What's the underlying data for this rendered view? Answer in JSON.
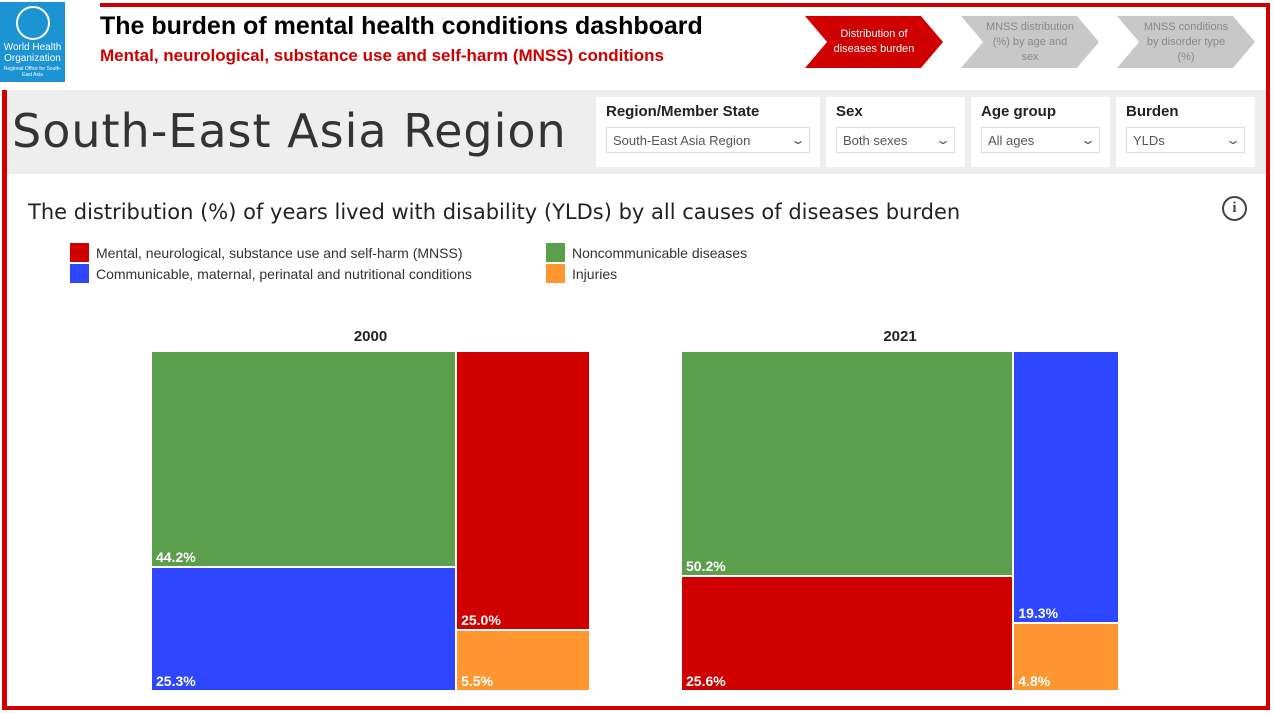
{
  "header": {
    "logo_text": "World Health Organization",
    "logo_subtext": "Regional Office for South-East Asia",
    "title": "The burden of mental health conditions dashboard",
    "subtitle": "Mental, neurological, substance use and self-harm (MNSS) conditions"
  },
  "nav": [
    {
      "label": "Distribution of diseases burden",
      "active": true
    },
    {
      "label": "MNSS distribution (%) by age and sex",
      "active": false
    },
    {
      "label": "MNSS conditions by disorder type (%)",
      "active": false
    }
  ],
  "region_title": "South-East Asia Region",
  "filters": [
    {
      "label": "Region/Member State",
      "value": "South-East Asia Region"
    },
    {
      "label": "Sex",
      "value": "Both sexes"
    },
    {
      "label": "Age group",
      "value": "All ages"
    },
    {
      "label": "Burden",
      "value": "YLDs"
    }
  ],
  "chart_title": "The distribution (%) of years lived with disability (YLDs) by all causes of diseases burden",
  "colors": {
    "mnss": "#d00000",
    "ncd": "#5b9f4d",
    "cmnn": "#2e46ff",
    "injuries": "#ff962f",
    "accent": "#d00000"
  },
  "legend": [
    {
      "key": "mnss",
      "label": "Mental, neurological, substance use and self-harm (MNSS)"
    },
    {
      "key": "ncd",
      "label": "Noncommunicable diseases"
    },
    {
      "key": "cmnn",
      "label": "Communicable, maternal, perinatal and nutritional conditions"
    },
    {
      "key": "injuries",
      "label": "Injuries"
    }
  ],
  "chart_data": [
    {
      "type": "treemap",
      "title": "2000",
      "values": [
        {
          "key": "ncd",
          "value": 44.2,
          "label": "44.2%"
        },
        {
          "key": "cmnn",
          "value": 25.3,
          "label": "25.3%"
        },
        {
          "key": "mnss",
          "value": 25.0,
          "label": "25.0%"
        },
        {
          "key": "injuries",
          "value": 5.5,
          "label": "5.5%"
        }
      ]
    },
    {
      "type": "treemap",
      "title": "2021",
      "values": [
        {
          "key": "ncd",
          "value": 50.2,
          "label": "50.2%"
        },
        {
          "key": "mnss",
          "value": 25.6,
          "label": "25.6%"
        },
        {
          "key": "cmnn",
          "value": 19.3,
          "label": "19.3%"
        },
        {
          "key": "injuries",
          "value": 4.8,
          "label": "4.8%"
        }
      ]
    }
  ]
}
